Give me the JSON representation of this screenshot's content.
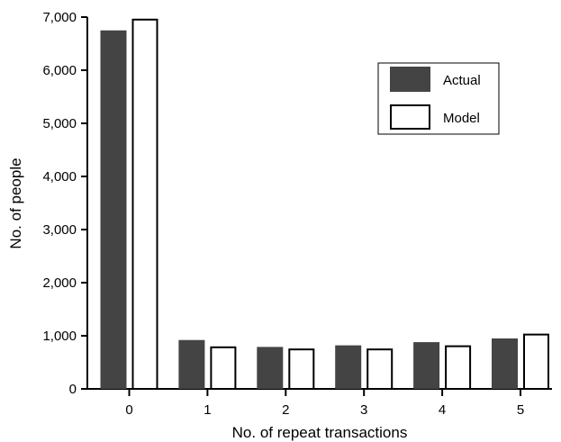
{
  "chart_data": {
    "type": "bar",
    "title": "",
    "xlabel": "No. of repeat transactions",
    "ylabel": "No. of people",
    "categories": [
      "0",
      "1",
      "2",
      "3",
      "4",
      "5"
    ],
    "series": [
      {
        "name": "Actual",
        "values": [
          6750,
          920,
          790,
          820,
          880,
          950
        ]
      },
      {
        "name": "Model",
        "values": [
          6970,
          800,
          760,
          760,
          820,
          1040
        ]
      }
    ],
    "ylim": [
      0,
      7000
    ],
    "yticks": [
      0,
      1000,
      2000,
      3000,
      4000,
      5000,
      6000,
      7000
    ],
    "ytick_labels": [
      "0",
      "1,000",
      "2,000",
      "3,000",
      "4,000",
      "5,000",
      "6,000",
      "7,000"
    ],
    "grid": false,
    "legend": {
      "position": "top-right",
      "entries": [
        {
          "label": "Actual",
          "color": "#444444",
          "style": "filled"
        },
        {
          "label": "Model",
          "color": "#ffffff",
          "style": "outlined"
        }
      ]
    },
    "colors": {
      "actual": "#444444",
      "model": "#ffffff",
      "axis": "#000000"
    }
  }
}
